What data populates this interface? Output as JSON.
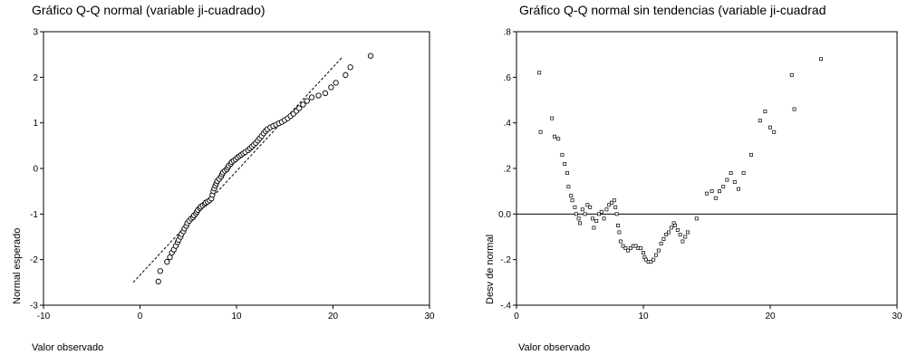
{
  "chart_data": [
    {
      "type": "scatter",
      "title": "Gráfico Q-Q normal (variable ji-cuadrado)",
      "xlabel": "Valor observado",
      "ylabel": "Normal esperado",
      "xlim": [
        -10,
        30
      ],
      "ylim": [
        -3,
        3
      ],
      "xticks": [
        "-10",
        "0",
        "10",
        "20",
        "30"
      ],
      "yticks": [
        "3",
        "2",
        "1",
        "0",
        "-1",
        "-2",
        "-3"
      ],
      "grid": false,
      "marker": "open-circle",
      "reference_line": {
        "style": "dashed",
        "from": [
          -0.7,
          -2.5
        ],
        "to": [
          21.0,
          2.45
        ]
      },
      "points": [
        [
          1.9,
          -2.48
        ],
        [
          2.1,
          -2.25
        ],
        [
          2.8,
          -2.05
        ],
        [
          3.1,
          -1.95
        ],
        [
          3.3,
          -1.85
        ],
        [
          3.5,
          -1.78
        ],
        [
          3.7,
          -1.7
        ],
        [
          3.9,
          -1.62
        ],
        [
          4.0,
          -1.57
        ],
        [
          4.2,
          -1.5
        ],
        [
          4.3,
          -1.44
        ],
        [
          4.5,
          -1.38
        ],
        [
          4.6,
          -1.32
        ],
        [
          4.8,
          -1.26
        ],
        [
          4.9,
          -1.2
        ],
        [
          5.1,
          -1.15
        ],
        [
          5.3,
          -1.1
        ],
        [
          5.5,
          -1.07
        ],
        [
          5.6,
          -1.03
        ],
        [
          5.8,
          -0.99
        ],
        [
          5.9,
          -0.95
        ],
        [
          6.0,
          -0.91
        ],
        [
          6.2,
          -0.87
        ],
        [
          6.3,
          -0.84
        ],
        [
          6.5,
          -0.81
        ],
        [
          6.7,
          -0.78
        ],
        [
          6.8,
          -0.75
        ],
        [
          7.0,
          -0.73
        ],
        [
          7.2,
          -0.7
        ],
        [
          7.4,
          -0.66
        ],
        [
          7.5,
          -0.58
        ],
        [
          7.6,
          -0.5
        ],
        [
          7.7,
          -0.44
        ],
        [
          7.8,
          -0.38
        ],
        [
          7.9,
          -0.33
        ],
        [
          8.0,
          -0.28
        ],
        [
          8.2,
          -0.23
        ],
        [
          8.4,
          -0.18
        ],
        [
          8.5,
          -0.13
        ],
        [
          8.6,
          -0.09
        ],
        [
          8.8,
          -0.05
        ],
        [
          9.0,
          -0.02
        ],
        [
          9.1,
          0.02
        ],
        [
          9.2,
          0.06
        ],
        [
          9.4,
          0.1
        ],
        [
          9.5,
          0.14
        ],
        [
          9.7,
          0.17
        ],
        [
          9.9,
          0.2
        ],
        [
          10.1,
          0.24
        ],
        [
          10.3,
          0.27
        ],
        [
          10.5,
          0.3
        ],
        [
          10.7,
          0.33
        ],
        [
          10.9,
          0.36
        ],
        [
          11.2,
          0.4
        ],
        [
          11.4,
          0.44
        ],
        [
          11.6,
          0.48
        ],
        [
          11.8,
          0.52
        ],
        [
          12.0,
          0.56
        ],
        [
          12.2,
          0.61
        ],
        [
          12.4,
          0.66
        ],
        [
          12.6,
          0.71
        ],
        [
          12.8,
          0.77
        ],
        [
          13.0,
          0.82
        ],
        [
          13.2,
          0.86
        ],
        [
          13.5,
          0.9
        ],
        [
          13.8,
          0.93
        ],
        [
          14.1,
          0.96
        ],
        [
          14.4,
          0.99
        ],
        [
          14.7,
          1.02
        ],
        [
          15.0,
          1.06
        ],
        [
          15.3,
          1.1
        ],
        [
          15.6,
          1.15
        ],
        [
          15.9,
          1.2
        ],
        [
          16.2,
          1.26
        ],
        [
          16.5,
          1.32
        ],
        [
          16.9,
          1.4
        ],
        [
          17.3,
          1.48
        ],
        [
          17.8,
          1.56
        ],
        [
          18.5,
          1.6
        ],
        [
          19.2,
          1.65
        ],
        [
          19.8,
          1.78
        ],
        [
          20.3,
          1.88
        ],
        [
          21.3,
          2.05
        ],
        [
          21.8,
          2.22
        ],
        [
          23.9,
          2.47
        ]
      ]
    },
    {
      "type": "scatter",
      "title": "Gráfico Q-Q normal sin tendencias (variable ji-cuadrad",
      "xlabel": "Valor observado",
      "ylabel": "Desv de normal",
      "xlim": [
        0,
        30
      ],
      "ylim": [
        -0.4,
        0.8
      ],
      "xticks": [
        "0",
        "10",
        "20",
        "30"
      ],
      "yticks": [
        ".8",
        ".6",
        ".4",
        ".2",
        "0.0",
        "-.2",
        "-.4"
      ],
      "grid": false,
      "marker": "small-open-square",
      "reference_line": {
        "style": "solid",
        "y": 0
      },
      "points": [
        [
          1.8,
          0.62
        ],
        [
          1.9,
          0.36
        ],
        [
          2.8,
          0.42
        ],
        [
          3.0,
          0.34
        ],
        [
          3.3,
          0.33
        ],
        [
          3.6,
          0.26
        ],
        [
          3.8,
          0.22
        ],
        [
          4.0,
          0.18
        ],
        [
          4.1,
          0.12
        ],
        [
          4.3,
          0.08
        ],
        [
          4.4,
          0.06
        ],
        [
          4.6,
          0.03
        ],
        [
          4.7,
          0.0
        ],
        [
          4.9,
          -0.02
        ],
        [
          5.0,
          -0.04
        ],
        [
          5.2,
          0.02
        ],
        [
          5.4,
          0.0
        ],
        [
          5.6,
          0.04
        ],
        [
          5.8,
          0.03
        ],
        [
          6.0,
          -0.02
        ],
        [
          6.1,
          -0.06
        ],
        [
          6.3,
          -0.03
        ],
        [
          6.5,
          0.0
        ],
        [
          6.7,
          0.01
        ],
        [
          6.9,
          -0.02
        ],
        [
          7.1,
          0.02
        ],
        [
          7.3,
          0.04
        ],
        [
          7.5,
          0.05
        ],
        [
          7.7,
          0.06
        ],
        [
          7.8,
          0.03
        ],
        [
          7.9,
          0.0
        ],
        [
          8.0,
          -0.05
        ],
        [
          8.1,
          -0.08
        ],
        [
          8.2,
          -0.12
        ],
        [
          8.4,
          -0.14
        ],
        [
          8.6,
          -0.15
        ],
        [
          8.8,
          -0.16
        ],
        [
          9.0,
          -0.15
        ],
        [
          9.2,
          -0.14
        ],
        [
          9.4,
          -0.14
        ],
        [
          9.6,
          -0.15
        ],
        [
          9.8,
          -0.15
        ],
        [
          10.0,
          -0.17
        ],
        [
          10.1,
          -0.19
        ],
        [
          10.2,
          -0.2
        ],
        [
          10.4,
          -0.21
        ],
        [
          10.6,
          -0.21
        ],
        [
          10.8,
          -0.2
        ],
        [
          11.0,
          -0.18
        ],
        [
          11.2,
          -0.16
        ],
        [
          11.4,
          -0.13
        ],
        [
          11.6,
          -0.11
        ],
        [
          11.8,
          -0.09
        ],
        [
          12.0,
          -0.08
        ],
        [
          12.2,
          -0.06
        ],
        [
          12.4,
          -0.04
        ],
        [
          12.5,
          -0.05
        ],
        [
          12.7,
          -0.07
        ],
        [
          12.9,
          -0.09
        ],
        [
          13.1,
          -0.12
        ],
        [
          13.3,
          -0.1
        ],
        [
          13.5,
          -0.08
        ],
        [
          14.2,
          -0.02
        ],
        [
          15.0,
          0.09
        ],
        [
          15.4,
          0.1
        ],
        [
          15.7,
          0.07
        ],
        [
          16.0,
          0.1
        ],
        [
          16.3,
          0.12
        ],
        [
          16.6,
          0.15
        ],
        [
          16.9,
          0.18
        ],
        [
          17.2,
          0.14
        ],
        [
          17.5,
          0.11
        ],
        [
          17.9,
          0.18
        ],
        [
          18.5,
          0.26
        ],
        [
          19.2,
          0.41
        ],
        [
          19.6,
          0.45
        ],
        [
          20.0,
          0.38
        ],
        [
          20.3,
          0.36
        ],
        [
          21.7,
          0.61
        ],
        [
          21.9,
          0.46
        ],
        [
          24.0,
          0.68
        ]
      ]
    }
  ]
}
